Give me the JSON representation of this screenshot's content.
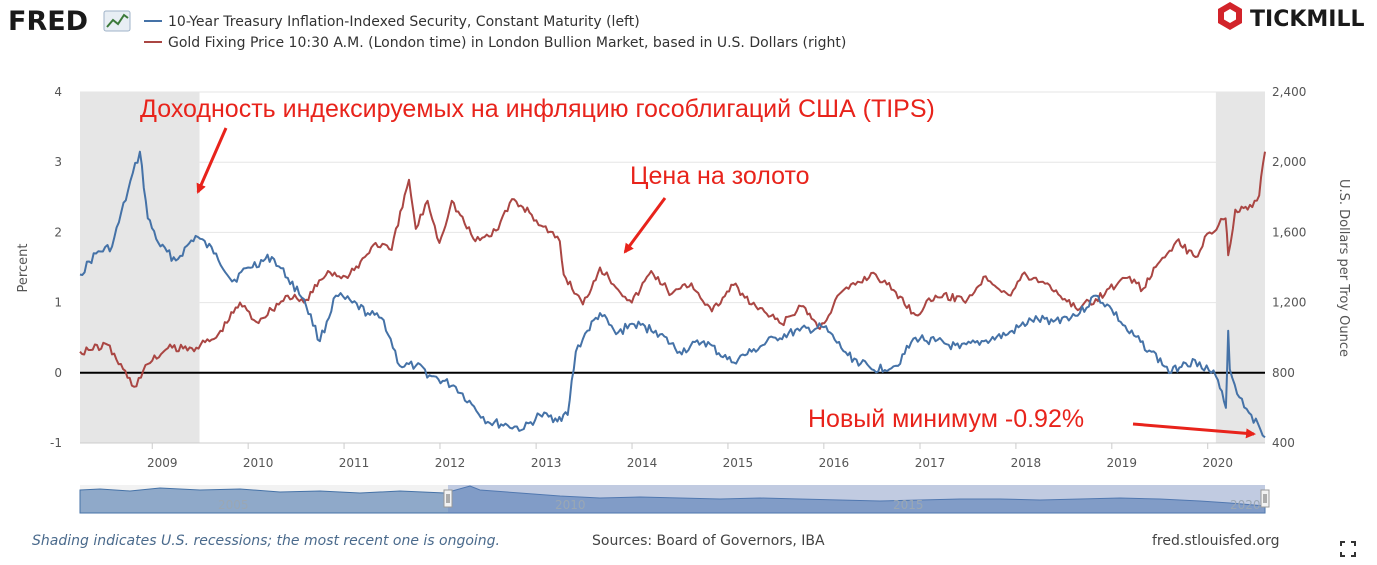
{
  "header": {
    "fred_logo": "FRED",
    "tickmill_logo": "TICKMILL"
  },
  "legend": [
    {
      "label": "10-Year Treasury Inflation-Indexed Security, Constant Maturity (left)",
      "color": "#4572a7"
    },
    {
      "label": "Gold Fixing Price 10:30 A.M. (London time) in London Bullion Market, based in U.S. Dollars (right)",
      "color": "#aa4643"
    }
  ],
  "annotations": {
    "tips_label": "Доходность индексируемых на инфляцию гособлигаций США (TIPS)",
    "gold_label": "Цена на золото",
    "low_label": "Новый минимум -0.92%",
    "color": "#e8231b"
  },
  "footer": {
    "note": "Shading indicates U.S. recessions; the most recent one is ongoing.",
    "sources": "Sources: Board of Governors, IBA",
    "site": "fred.stlouisfed.org"
  },
  "navigator": {
    "labels": [
      "2005",
      "2010",
      "2015",
      "2020"
    ]
  },
  "chart_data": {
    "type": "line",
    "x_range": [
      "2008-04-01",
      "2020-08-06"
    ],
    "x_ticks": [
      "2009",
      "2010",
      "2011",
      "2012",
      "2013",
      "2014",
      "2015",
      "2016",
      "2017",
      "2018",
      "2019",
      "2020"
    ],
    "y_left": {
      "label": "Percent",
      "ticks": [
        4,
        3,
        2,
        1,
        0,
        -1
      ],
      "range": [
        -1,
        4
      ]
    },
    "y_right": {
      "label": "U.S. Dollars per Troy Ounce",
      "ticks": [
        "2,400",
        "2,000",
        "1,600",
        "1,200",
        "800",
        "400"
      ],
      "range": [
        400,
        2400
      ]
    },
    "zero_line": 0,
    "recessions": [
      {
        "start": "2008-04-01",
        "end": "2009-06-30"
      },
      {
        "start": "2020-02-01",
        "end": "2020-08-06"
      }
    ],
    "series": [
      {
        "name": "10-Year Treasury Inflation-Indexed Security, Constant Maturity (left)",
        "axis": "left",
        "color": "#4572a7",
        "points": [
          [
            "2008-04-01",
            1.4
          ],
          [
            "2008-06-01",
            1.7
          ],
          [
            "2008-08-01",
            1.8
          ],
          [
            "2008-10-01",
            2.6
          ],
          [
            "2008-11-15",
            3.15
          ],
          [
            "2008-12-15",
            2.2
          ],
          [
            "2009-02-01",
            1.8
          ],
          [
            "2009-04-01",
            1.6
          ],
          [
            "2009-06-15",
            1.95
          ],
          [
            "2009-09-01",
            1.7
          ],
          [
            "2009-11-01",
            1.3
          ],
          [
            "2010-01-01",
            1.5
          ],
          [
            "2010-04-01",
            1.65
          ],
          [
            "2010-06-01",
            1.35
          ],
          [
            "2010-08-01",
            1.05
          ],
          [
            "2010-10-01",
            0.45
          ],
          [
            "2010-12-01",
            1.1
          ],
          [
            "2011-02-01",
            1.0
          ],
          [
            "2011-04-01",
            0.85
          ],
          [
            "2011-06-01",
            0.75
          ],
          [
            "2011-08-01",
            0.1
          ],
          [
            "2011-10-01",
            0.1
          ],
          [
            "2011-12-01",
            -0.05
          ],
          [
            "2012-03-01",
            -0.2
          ],
          [
            "2012-05-01",
            -0.45
          ],
          [
            "2012-07-01",
            -0.7
          ],
          [
            "2012-09-15",
            -0.75
          ],
          [
            "2012-11-15",
            -0.8
          ],
          [
            "2013-01-15",
            -0.6
          ],
          [
            "2013-03-15",
            -0.65
          ],
          [
            "2013-05-01",
            -0.6
          ],
          [
            "2013-06-01",
            0.3
          ],
          [
            "2013-07-15",
            0.6
          ],
          [
            "2013-09-01",
            0.85
          ],
          [
            "2013-11-01",
            0.55
          ],
          [
            "2014-01-01",
            0.7
          ],
          [
            "2014-04-01",
            0.6
          ],
          [
            "2014-07-01",
            0.3
          ],
          [
            "2014-10-01",
            0.45
          ],
          [
            "2015-01-15",
            0.15
          ],
          [
            "2015-04-01",
            0.3
          ],
          [
            "2015-07-01",
            0.5
          ],
          [
            "2015-10-01",
            0.6
          ],
          [
            "2016-01-01",
            0.65
          ],
          [
            "2016-04-01",
            0.25
          ],
          [
            "2016-07-01",
            0.05
          ],
          [
            "2016-10-01",
            0.1
          ],
          [
            "2016-12-15",
            0.5
          ],
          [
            "2017-03-01",
            0.45
          ],
          [
            "2017-06-01",
            0.35
          ],
          [
            "2017-09-01",
            0.45
          ],
          [
            "2017-12-01",
            0.55
          ],
          [
            "2018-03-01",
            0.75
          ],
          [
            "2018-06-01",
            0.75
          ],
          [
            "2018-09-01",
            0.85
          ],
          [
            "2018-11-01",
            1.1
          ],
          [
            "2019-01-01",
            0.9
          ],
          [
            "2019-03-01",
            0.6
          ],
          [
            "2019-06-01",
            0.3
          ],
          [
            "2019-08-15",
            0.0
          ],
          [
            "2019-10-01",
            0.15
          ],
          [
            "2019-12-01",
            0.15
          ],
          [
            "2020-02-01",
            -0.05
          ],
          [
            "2020-03-10",
            -0.5
          ],
          [
            "2020-03-19",
            0.6
          ],
          [
            "2020-03-25",
            0.05
          ],
          [
            "2020-05-01",
            -0.35
          ],
          [
            "2020-06-15",
            -0.6
          ],
          [
            "2020-08-06",
            -0.92
          ]
        ]
      },
      {
        "name": "Gold Fixing Price 10:30 A.M. (London time) in London Bullion Market, based in U.S. Dollars (right)",
        "axis": "right",
        "color": "#aa4643",
        "points": [
          [
            "2008-04-01",
            920
          ],
          [
            "2008-07-15",
            960
          ],
          [
            "2008-10-24",
            720
          ],
          [
            "2008-12-15",
            850
          ],
          [
            "2009-03-01",
            940
          ],
          [
            "2009-06-01",
            940
          ],
          [
            "2009-09-01",
            1000
          ],
          [
            "2009-12-01",
            1200
          ],
          [
            "2010-02-01",
            1090
          ],
          [
            "2010-06-01",
            1240
          ],
          [
            "2010-08-01",
            1200
          ],
          [
            "2010-11-01",
            1380
          ],
          [
            "2011-01-15",
            1340
          ],
          [
            "2011-05-01",
            1540
          ],
          [
            "2011-07-01",
            1500
          ],
          [
            "2011-09-05",
            1900
          ],
          [
            "2011-10-01",
            1620
          ],
          [
            "2011-11-15",
            1780
          ],
          [
            "2011-12-30",
            1540
          ],
          [
            "2012-02-15",
            1780
          ],
          [
            "2012-05-15",
            1550
          ],
          [
            "2012-08-01",
            1610
          ],
          [
            "2012-10-01",
            1790
          ],
          [
            "2012-12-15",
            1700
          ],
          [
            "2013-02-15",
            1600
          ],
          [
            "2013-04-01",
            1550
          ],
          [
            "2013-04-16",
            1360
          ],
          [
            "2013-06-28",
            1190
          ],
          [
            "2013-09-01",
            1400
          ],
          [
            "2013-12-31",
            1200
          ],
          [
            "2014-03-15",
            1380
          ],
          [
            "2014-06-01",
            1250
          ],
          [
            "2014-08-15",
            1310
          ],
          [
            "2014-11-01",
            1150
          ],
          [
            "2015-01-22",
            1300
          ],
          [
            "2015-04-01",
            1190
          ],
          [
            "2015-07-24",
            1080
          ],
          [
            "2015-10-15",
            1180
          ],
          [
            "2015-12-17",
            1050
          ],
          [
            "2016-03-01",
            1250
          ],
          [
            "2016-07-08",
            1370
          ],
          [
            "2016-10-01",
            1260
          ],
          [
            "2016-12-15",
            1130
          ],
          [
            "2017-03-01",
            1240
          ],
          [
            "2017-07-01",
            1220
          ],
          [
            "2017-09-08",
            1350
          ],
          [
            "2017-12-12",
            1240
          ],
          [
            "2018-01-25",
            1360
          ],
          [
            "2018-05-01",
            1310
          ],
          [
            "2018-08-16",
            1170
          ],
          [
            "2018-11-01",
            1220
          ],
          [
            "2019-02-20",
            1340
          ],
          [
            "2019-05-01",
            1280
          ],
          [
            "2019-06-25",
            1420
          ],
          [
            "2019-09-04",
            1550
          ],
          [
            "2019-11-15",
            1460
          ],
          [
            "2020-01-08",
            1600
          ],
          [
            "2020-03-09",
            1680
          ],
          [
            "2020-03-19",
            1470
          ],
          [
            "2020-04-15",
            1730
          ],
          [
            "2020-06-01",
            1730
          ],
          [
            "2020-07-15",
            1810
          ],
          [
            "2020-08-06",
            2060
          ]
        ]
      }
    ]
  }
}
